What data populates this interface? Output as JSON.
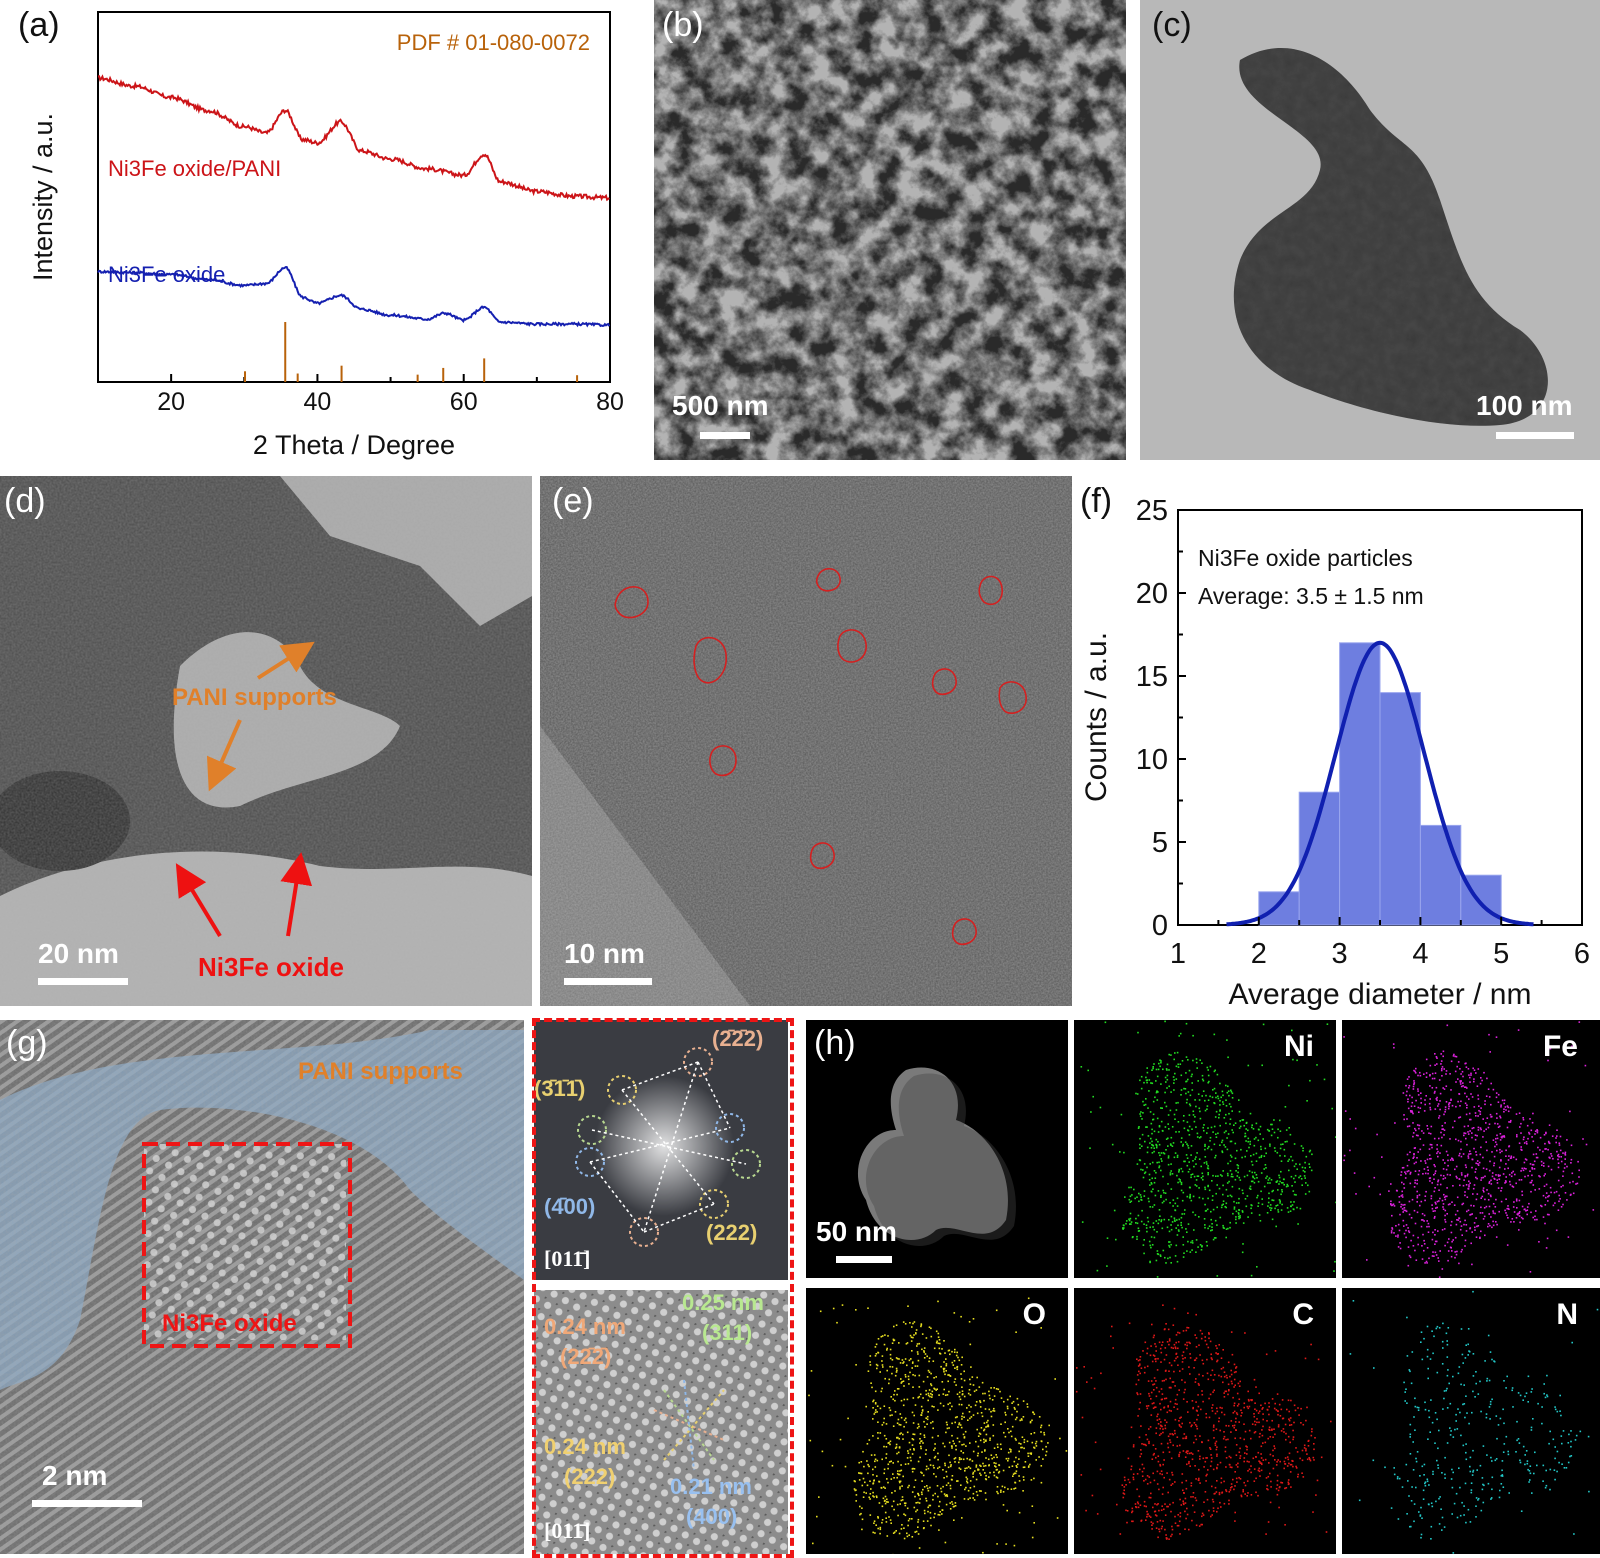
{
  "panels": {
    "a": {
      "label": "(a)",
      "pdf_ref": "PDF # 01-080-0072",
      "series": [
        {
          "name": "Ni3Fe oxide/PANI",
          "color": "#cc1418"
        },
        {
          "name": "Ni3Fe oxide",
          "color": "#1520b0"
        }
      ],
      "reference_color": "#b8620a",
      "ylabel": "Intensity / a.u.",
      "xlabel": "2 Theta / Degree",
      "xticks": [
        "20",
        "40",
        "60",
        "80"
      ]
    },
    "b": {
      "label": "(b)",
      "scalebar": "500 nm"
    },
    "c": {
      "label": "(c)",
      "scalebar": "100 nm"
    },
    "d": {
      "label": "(d)",
      "scalebar": "20 nm",
      "annot_supports": "PANI supports",
      "annot_oxide": "Ni3Fe oxide"
    },
    "e": {
      "label": "(e)",
      "scalebar": "10 nm"
    },
    "f": {
      "label": "(f)",
      "legend_line1": "Ni3Fe oxide particles",
      "legend_line2": "Average: 3.5 ± 1.5 nm",
      "xlabel": "Average diameter / nm",
      "ylabel": "Counts / a.u.",
      "xticks": [
        "1",
        "2",
        "3",
        "4",
        "5",
        "6"
      ],
      "yticks": [
        "0",
        "5",
        "10",
        "15",
        "20",
        "25"
      ]
    },
    "g": {
      "label": "(g)",
      "scalebar": "2 nm",
      "annot_supports": "PANI supports",
      "annot_oxide": "Ni3Fe oxide",
      "fft": {
        "p1": "(2̄2̄2)",
        "p2": "(3̄1̄1̄)",
        "p3": "(4̄00)",
        "p4": "(222)",
        "zone": "[011̄]"
      },
      "ifft": {
        "l1a": "0.24 nm",
        "l1b": "(22̄2̄)",
        "l2a": "0.25 nm",
        "l2b": "(311)",
        "l3a": "0.24 nm",
        "l3b": "(222)",
        "l4a": "0.21 nm",
        "l4b": "(400)",
        "zone": "[011̄]"
      }
    },
    "h": {
      "label": "(h)",
      "scalebar": "50 nm",
      "elements": [
        {
          "name": "Ni",
          "color": "#22dd22"
        },
        {
          "name": "Fe",
          "color": "#dd22dd"
        },
        {
          "name": "O",
          "color": "#e8e020"
        },
        {
          "name": "C",
          "color": "#e01818"
        },
        {
          "name": "N",
          "color": "#22c8c8"
        }
      ]
    }
  },
  "chart_data": [
    {
      "type": "line",
      "panel": "a",
      "xlabel": "2 Theta / Degree",
      "ylabel": "Intensity / a.u.",
      "xlim": [
        10,
        80
      ],
      "series": [
        {
          "name": "Ni3Fe oxide/PANI",
          "x": [
            10,
            15,
            20,
            25,
            30,
            33,
            35.6,
            38,
            40,
            43.2,
            46,
            50,
            55,
            60,
            62.8,
            65,
            70,
            75,
            80
          ],
          "y": [
            1.0,
            0.95,
            0.88,
            0.8,
            0.7,
            0.66,
            0.8,
            0.62,
            0.6,
            0.73,
            0.55,
            0.5,
            0.44,
            0.4,
            0.53,
            0.36,
            0.3,
            0.27,
            0.26
          ]
        },
        {
          "name": "Ni3Fe oxide",
          "x": [
            10,
            15,
            20,
            25,
            30,
            33,
            35.6,
            38,
            40,
            43.2,
            46,
            50,
            55,
            57.4,
            60,
            62.8,
            65,
            70,
            75,
            80
          ],
          "y": [
            0.58,
            0.57,
            0.55,
            0.5,
            0.44,
            0.46,
            0.62,
            0.32,
            0.26,
            0.34,
            0.2,
            0.14,
            0.1,
            0.16,
            0.09,
            0.22,
            0.07,
            0.05,
            0.05,
            0.04
          ]
        }
      ],
      "reference_lines": {
        "name": "PDF # 01-080-0072",
        "x": [
          30.1,
          35.6,
          37.3,
          43.3,
          53.7,
          57.2,
          62.8,
          75.5
        ],
        "rel_intensity": [
          12,
          100,
          8,
          22,
          6,
          18,
          35,
          5
        ]
      }
    },
    {
      "type": "bar",
      "panel": "f",
      "xlabel": "Average diameter / nm",
      "ylabel": "Counts / a.u.",
      "xlim": [
        1,
        6
      ],
      "ylim": [
        0,
        25
      ],
      "bins": [
        [
          2.0,
          2.5
        ],
        [
          2.5,
          3.0
        ],
        [
          3.0,
          3.5
        ],
        [
          3.5,
          4.0
        ],
        [
          4.0,
          4.5
        ],
        [
          4.5,
          5.0
        ]
      ],
      "values": [
        2,
        8,
        17,
        14,
        6,
        3
      ],
      "fit": {
        "type": "gaussian",
        "mean": 3.5,
        "sigma": 0.55,
        "peak": 17,
        "range": [
          1.6,
          5.4
        ]
      }
    }
  ]
}
